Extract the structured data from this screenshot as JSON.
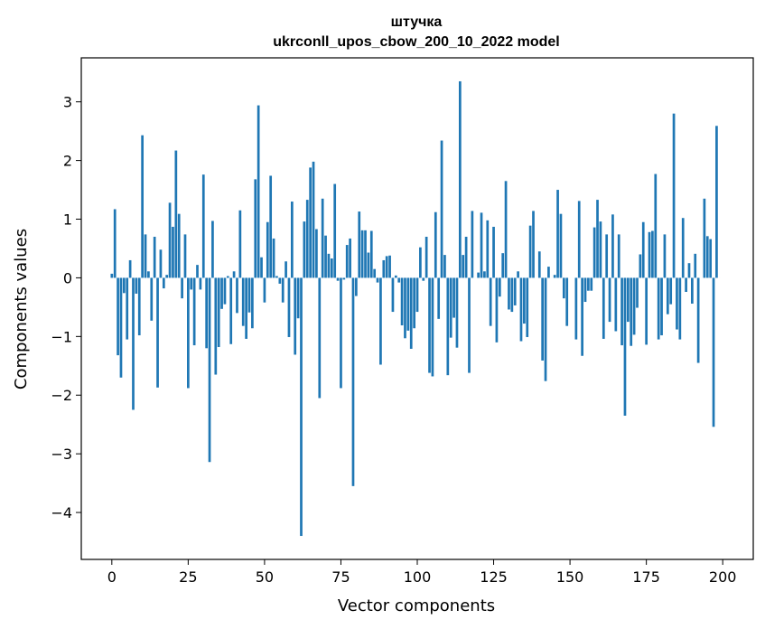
{
  "chart_data": {
    "type": "bar",
    "title": "штучка",
    "subtitle": "ukrconll_upos_cbow_200_10_2022 model",
    "xlabel": "Vector components",
    "ylabel": "Components values",
    "xlim": [
      -10,
      210
    ],
    "ylim": [
      -4.8,
      3.75
    ],
    "xticks": [
      0,
      25,
      50,
      75,
      100,
      125,
      150,
      175,
      200
    ],
    "yticks": [
      -4,
      -3,
      -2,
      -1,
      0,
      1,
      2,
      3
    ],
    "grid": false,
    "bar_color": "#1f77b4",
    "values": [
      0.07,
      1.17,
      -1.32,
      -1.7,
      -0.26,
      -1.05,
      0.3,
      -2.25,
      -0.27,
      -0.98,
      2.43,
      0.74,
      0.11,
      -0.73,
      0.7,
      -1.87,
      0.48,
      -0.18,
      0.05,
      1.28,
      0.87,
      2.17,
      1.09,
      -0.35,
      0.74,
      -1.88,
      -0.2,
      -1.15,
      0.22,
      -0.2,
      1.76,
      -1.2,
      -3.14,
      0.97,
      -1.65,
      -1.18,
      -0.53,
      -0.45,
      0.03,
      -1.13,
      0.11,
      -0.6,
      1.15,
      -0.82,
      -1.04,
      -0.59,
      -0.86,
      1.68,
      2.94,
      0.35,
      -0.42,
      0.95,
      1.74,
      0.67,
      0.03,
      -0.1,
      -0.42,
      0.28,
      -1.01,
      1.3,
      -1.31,
      -0.69,
      -4.4,
      0.96,
      1.33,
      1.88,
      1.98,
      0.83,
      -2.05,
      1.35,
      0.72,
      0.41,
      0.33,
      1.6,
      -0.05,
      -1.88,
      -0.03,
      0.56,
      0.67,
      -3.55,
      -0.31,
      1.13,
      0.81,
      0.81,
      0.43,
      0.8,
      0.15,
      -0.08,
      -1.48,
      0.3,
      0.37,
      0.38,
      -0.58,
      0.04,
      -0.08,
      -0.81,
      -1.03,
      -0.9,
      -1.21,
      -0.86,
      -0.58,
      0.52,
      -0.05,
      0.7,
      -1.62,
      -1.68,
      1.12,
      -0.7,
      2.34,
      0.39,
      -1.66,
      -1.02,
      -0.68,
      -1.19,
      3.35,
      0.39,
      0.7,
      -1.62,
      1.14,
      0.0,
      0.09,
      1.11,
      0.11,
      0.98,
      -0.82,
      0.87,
      -1.1,
      -0.32,
      0.42,
      1.65,
      -0.54,
      -0.58,
      -0.47,
      0.11,
      -1.08,
      -0.78,
      -1.01,
      0.89,
      1.14,
      0.0,
      0.45,
      -1.41,
      -1.76,
      0.19,
      0.0,
      0.05,
      1.5,
      1.09,
      -0.35,
      -0.82,
      0.0,
      0.0,
      -1.05,
      1.31,
      -1.33,
      -0.41,
      -0.22,
      -0.22,
      0.86,
      1.33,
      0.96,
      -1.04,
      0.74,
      -0.75,
      1.08,
      -0.91,
      0.74,
      -1.15,
      -2.35,
      -0.75,
      -1.16,
      -0.97,
      -0.51,
      0.4,
      0.95,
      -1.14,
      0.78,
      0.8,
      1.77,
      -1.05,
      -0.98,
      0.74,
      -0.62,
      -0.45,
      2.8,
      -0.88,
      -1.05,
      1.02,
      -0.24,
      0.25,
      -0.44,
      0.41,
      -1.45,
      0.0,
      1.35,
      0.71,
      0.66,
      -2.54,
      2.59,
      0.0
    ]
  }
}
